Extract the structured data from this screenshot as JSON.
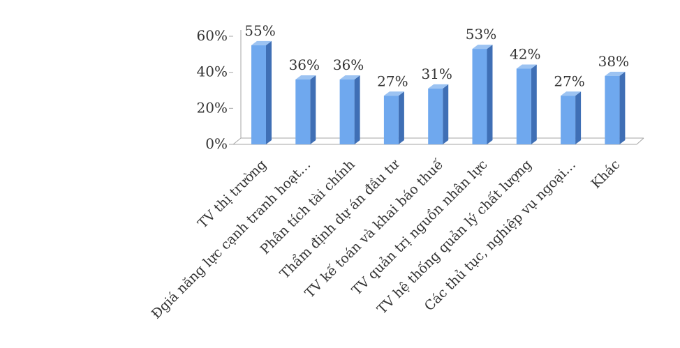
{
  "chart_data": {
    "type": "bar",
    "title": "",
    "xlabel": "",
    "ylabel": "",
    "categories": [
      "TV thị trường",
      "Đgiá năng lực cạnh tranh hoạt…",
      "Phân tích tài chính",
      "Thẩm định dự án đầu tư",
      "TV kế toán và khai báo thuế",
      "TV quản trị nguồn nhân lực",
      "TV hệ thống quản lý chất lượng",
      "Các thủ tục, nghiệp vụ ngoại…",
      "Khác"
    ],
    "values": [
      55,
      36,
      36,
      27,
      31,
      53,
      42,
      27,
      38
    ],
    "value_labels": [
      "55%",
      "36%",
      "36%",
      "27%",
      "31%",
      "53%",
      "42%",
      "27%",
      "38%"
    ],
    "ylim": [
      0,
      60
    ],
    "yticks": [
      0,
      20,
      40,
      60
    ],
    "ytick_labels": [
      "0%",
      "20%",
      "40%",
      "60%"
    ],
    "grid": false,
    "legend": "none",
    "style": "3d-column",
    "colors": {
      "bar_front": "#6fa8ee",
      "bar_side": "#3f6fb5",
      "bar_top": "#9cc3f2",
      "axis": "#a6a6a6",
      "text": "#333333"
    }
  }
}
